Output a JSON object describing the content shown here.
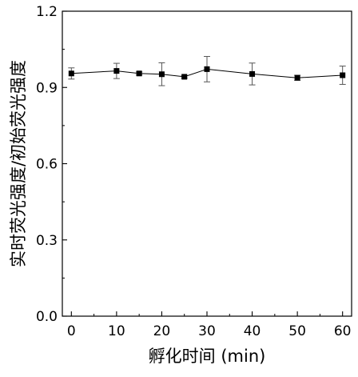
{
  "chart_data": {
    "type": "line",
    "title": "",
    "xlabel": "孵化时间 (min)",
    "ylabel": "实时荧光强度/初始荧光强度",
    "xlim": [
      -2,
      62
    ],
    "ylim": [
      0.0,
      1.2
    ],
    "xticks": [
      0,
      10,
      20,
      30,
      40,
      50,
      60
    ],
    "yticks": [
      0.0,
      0.3,
      0.6,
      0.9,
      1.2
    ],
    "ytick_labels": [
      "0.0",
      "0.3",
      "0.6",
      "0.9",
      "1.2"
    ],
    "grid": false,
    "legend": "none",
    "series": [
      {
        "x": [
          0,
          10,
          15,
          20,
          25,
          30,
          40,
          50,
          60
        ],
        "y": [
          0.955,
          0.965,
          0.955,
          0.952,
          0.942,
          0.972,
          0.953,
          0.938,
          0.948
        ],
        "error": [
          0.022,
          0.03,
          0.006,
          0.045,
          0.005,
          0.05,
          0.043,
          0.01,
          0.036
        ],
        "marker": "square",
        "color": "#000000"
      }
    ]
  }
}
